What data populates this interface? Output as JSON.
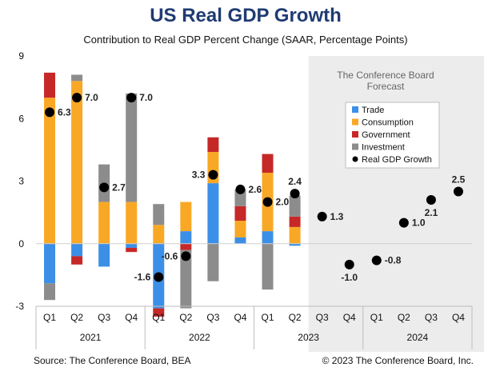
{
  "colors": {
    "trade": "#3c8fe6",
    "consumption": "#f9a825",
    "government": "#c62828",
    "investment": "#8c8c8c",
    "gdp": "#000000",
    "title": "#1f3b73",
    "forecast_bg": "#ececec"
  },
  "chart_data": {
    "type": "bar",
    "stacked": true,
    "title": "US Real GDP Growth",
    "subtitle": "Contribution to Real GDP Percent Change (SAAR, Percentage Points)",
    "categories": [
      "Q1",
      "Q2",
      "Q3",
      "Q4",
      "Q1",
      "Q2",
      "Q3",
      "Q4",
      "Q1",
      "Q2",
      "Q3",
      "Q4",
      "Q1",
      "Q2",
      "Q3",
      "Q4"
    ],
    "years": [
      {
        "label": "2021",
        "span": 4
      },
      {
        "label": "2022",
        "span": 4
      },
      {
        "label": "2023",
        "span": 4
      },
      {
        "label": "2024",
        "span": 4
      }
    ],
    "ylim": [
      -3,
      9
    ],
    "yticks": [
      "9",
      "6",
      "3",
      "0",
      "-3"
    ],
    "series": [
      {
        "name": "Trade",
        "color_key": "trade",
        "values": [
          -1.9,
          -0.6,
          -1.1,
          -0.2,
          -3.1,
          0.6,
          2.9,
          0.3,
          0.6,
          -0.1,
          null,
          null,
          null,
          null,
          null,
          null
        ]
      },
      {
        "name": "Consumption",
        "color_key": "consumption",
        "values": [
          7.0,
          7.8,
          2.0,
          2.0,
          0.9,
          1.4,
          1.5,
          0.8,
          2.8,
          0.8,
          null,
          null,
          null,
          null,
          null,
          null
        ]
      },
      {
        "name": "Government",
        "color_key": "government",
        "values": [
          1.2,
          -0.4,
          0.0,
          -0.2,
          -0.4,
          -0.3,
          0.7,
          0.7,
          0.9,
          0.5,
          null,
          null,
          null,
          null,
          null,
          null
        ]
      },
      {
        "name": "Investment",
        "color_key": "investment",
        "values": [
          -0.8,
          0.3,
          1.8,
          5.2,
          1.0,
          -2.8,
          -1.8,
          0.8,
          -2.2,
          1.0,
          null,
          null,
          null,
          null,
          null,
          null
        ]
      }
    ],
    "gdp_growth": {
      "name": "Real GDP Growth",
      "values": [
        6.3,
        7.0,
        2.7,
        7.0,
        -1.6,
        -0.6,
        3.3,
        2.6,
        2.0,
        2.4,
        1.3,
        -1.0,
        -0.8,
        1.0,
        2.1,
        2.5
      ],
      "labels": [
        "6.3",
        "7.0",
        "2.7",
        "7.0",
        "-1.6",
        "-0.6",
        "3.3",
        "2.6",
        "2.0",
        "2.4",
        "1.3",
        "-1.0",
        "-0.8",
        "1.0",
        "2.1",
        "2.5"
      ],
      "label_side": [
        "right",
        "right",
        "right",
        "right",
        "left",
        "left",
        "left",
        "right",
        "right",
        "above",
        "right",
        "below",
        "right",
        "right",
        "below",
        "above"
      ]
    },
    "forecast_start_index": 10,
    "forecast_label_line1": "The Conference Board",
    "forecast_label_line2": "Forecast",
    "legend": {
      "position": "inside",
      "items": [
        "Trade",
        "Consumption",
        "Government",
        "Investment",
        "Real GDP Growth"
      ]
    }
  },
  "footer": {
    "source": "Source: The Conference Board, BEA",
    "copyright": "© 2023 The Conference Board, Inc."
  }
}
